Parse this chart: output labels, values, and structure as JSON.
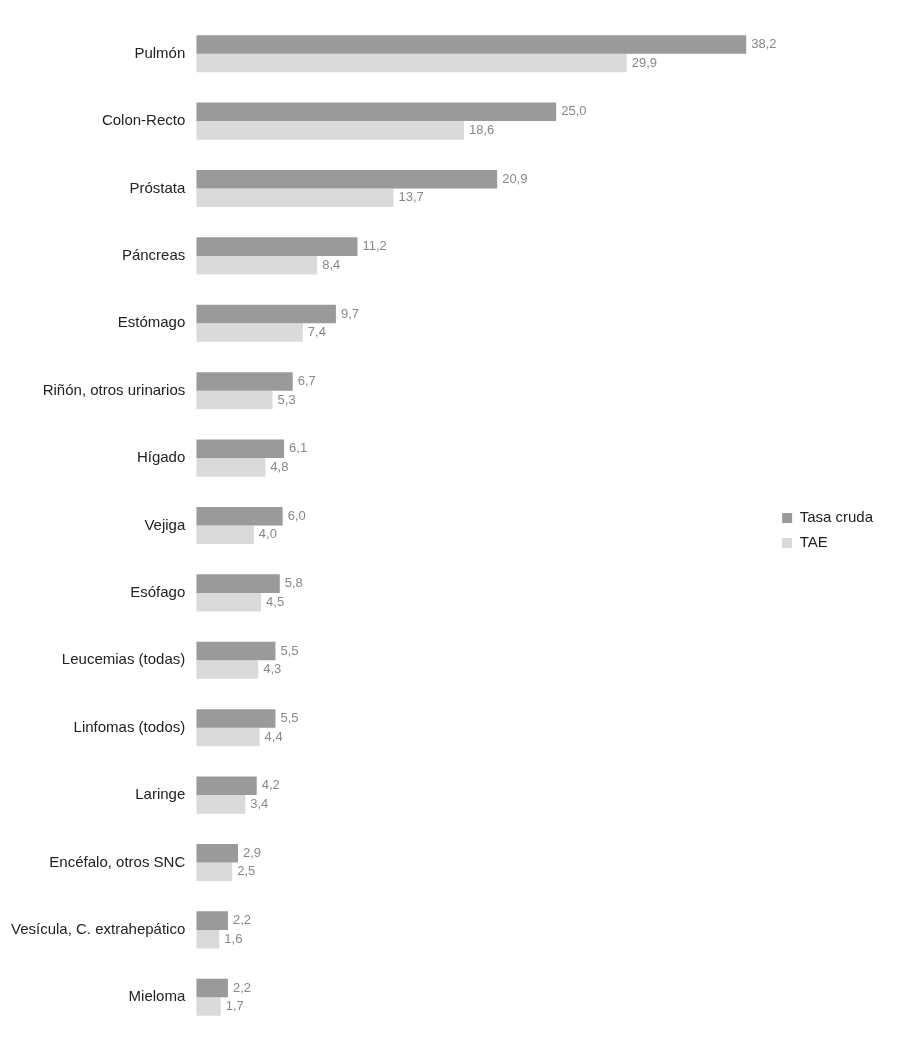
{
  "chart_data": {
    "type": "bar",
    "orientation": "horizontal",
    "categories": [
      "Pulmón",
      "Colon-Recto",
      "Próstata",
      "Páncreas",
      "Estómago",
      "Riñón, otros urinarios",
      "Hígado",
      "Vejiga",
      "Esófago",
      "Leucemias (todas)",
      "Linfomas (todos)",
      "Laringe",
      "Encéfalo, otros SNC",
      "Vesícula, C. extrahepático",
      "Mieloma"
    ],
    "series": [
      {
        "name": "Tasa cruda",
        "color": "#9a9a9a",
        "values": [
          38.2,
          25.0,
          20.9,
          11.2,
          9.7,
          6.7,
          6.1,
          6.0,
          5.8,
          5.5,
          5.5,
          4.2,
          2.9,
          2.2,
          2.2
        ],
        "value_labels": [
          "38,2",
          "25,0",
          "20,9",
          "11,2",
          "9,7",
          "6,7",
          "6,1",
          "6,0",
          "5,8",
          "5,5",
          "5,5",
          "4,2",
          "2,9",
          "2,2",
          "2,2"
        ]
      },
      {
        "name": "TAE",
        "color": "#dadada",
        "values": [
          29.9,
          18.6,
          13.7,
          8.4,
          7.4,
          5.3,
          4.8,
          4.0,
          4.5,
          4.3,
          4.4,
          3.4,
          2.5,
          1.6,
          1.7
        ],
        "value_labels": [
          "29,9",
          "18,6",
          "13,7",
          "8,4",
          "7,4",
          "5,3",
          "4,8",
          "4,0",
          "4,5",
          "4,3",
          "4,4",
          "3,4",
          "2,5",
          "1,6",
          "1,7"
        ]
      }
    ],
    "tick_labels": "y",
    "grid": false,
    "legend": "right"
  }
}
